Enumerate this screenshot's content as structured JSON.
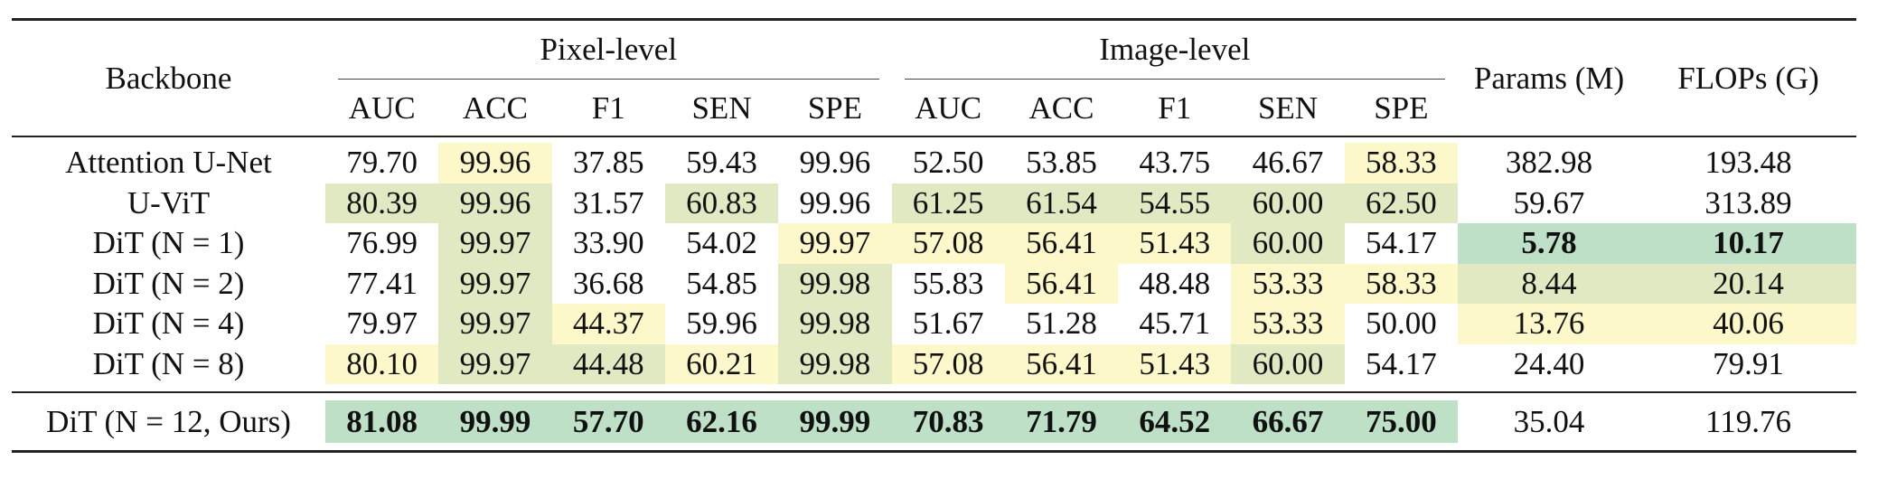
{
  "header": {
    "backbone": "Backbone",
    "groups": [
      "Pixel-level",
      "Image-level"
    ],
    "metrics": [
      "AUC",
      "ACC",
      "F1",
      "SEN",
      "SPE",
      "AUC",
      "ACC",
      "F1",
      "SEN",
      "SPE"
    ],
    "params": "Params (M)",
    "flops": "FLOPs (G)"
  },
  "rows": [
    {
      "backbone": "Attention U-Net",
      "values": [
        "79.70",
        "99.96",
        "37.85",
        "59.43",
        "99.96",
        "52.50",
        "53.85",
        "43.75",
        "46.67",
        "58.33",
        "382.98",
        "193.48"
      ]
    },
    {
      "backbone": "U-ViT",
      "values": [
        "80.39",
        "99.96",
        "31.57",
        "60.83",
        "99.96",
        "61.25",
        "61.54",
        "54.55",
        "60.00",
        "62.50",
        "59.67",
        "313.89"
      ]
    },
    {
      "backbone": "DiT (N = 1)",
      "values": [
        "76.99",
        "99.97",
        "33.90",
        "54.02",
        "99.97",
        "57.08",
        "56.41",
        "51.43",
        "60.00",
        "54.17",
        "5.78",
        "10.17"
      ]
    },
    {
      "backbone": "DiT (N = 2)",
      "values": [
        "77.41",
        "99.97",
        "36.68",
        "54.85",
        "99.98",
        "55.83",
        "56.41",
        "48.48",
        "53.33",
        "58.33",
        "8.44",
        "20.14"
      ]
    },
    {
      "backbone": "DiT (N = 4)",
      "values": [
        "79.97",
        "99.97",
        "44.37",
        "59.96",
        "99.98",
        "51.67",
        "51.28",
        "45.71",
        "53.33",
        "50.00",
        "13.76",
        "40.06"
      ]
    },
    {
      "backbone": "DiT (N = 8)",
      "values": [
        "80.10",
        "99.97",
        "44.48",
        "60.21",
        "99.98",
        "57.08",
        "56.41",
        "51.43",
        "60.00",
        "54.17",
        "24.40",
        "79.91"
      ]
    },
    {
      "backbone": "DiT (N = 12, Ours)",
      "values": [
        "81.08",
        "99.99",
        "57.70",
        "62.16",
        "99.99",
        "70.83",
        "71.79",
        "64.52",
        "66.67",
        "75.00",
        "35.04",
        "119.76"
      ]
    }
  ]
}
